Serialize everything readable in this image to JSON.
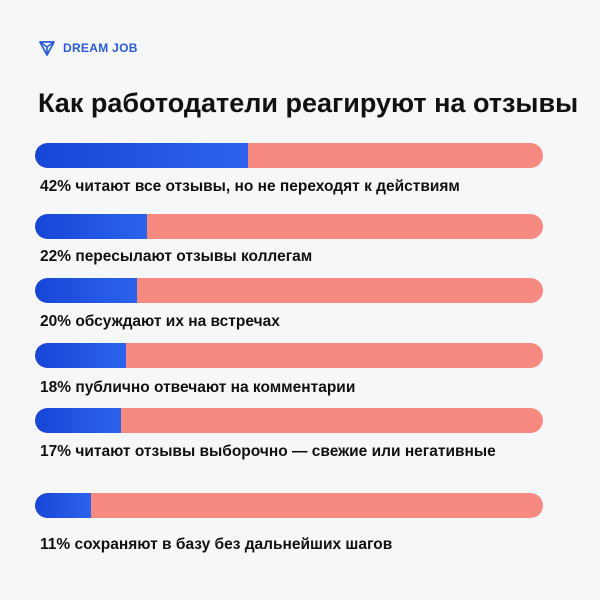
{
  "brand": {
    "name": "DREAM JOB",
    "icon": "shield-icon",
    "color": "#2a5cd6"
  },
  "chart_data": {
    "type": "bar",
    "orientation": "horizontal",
    "title": "Как работодатели реагируют на отзывы",
    "xlabel": "",
    "ylabel": "",
    "xlim": [
      0,
      100
    ],
    "colors": {
      "fill": "#1f55e6",
      "track": "#f78a80"
    },
    "items": [
      {
        "value": 42,
        "label": "42% читают все отзывы, но не переходят к действиям"
      },
      {
        "value": 22,
        "label": "22% пересылают отзывы коллегам"
      },
      {
        "value": 20,
        "label": "20% обсуждают их на встречах"
      },
      {
        "value": 18,
        "label": "18% публично отвечают на комментарии"
      },
      {
        "value": 17,
        "label": "17% читают отзывы выборочно — свежие или негативные"
      },
      {
        "value": 11,
        "label": "11% сохраняют в базу без дальнейших шагов"
      }
    ]
  }
}
